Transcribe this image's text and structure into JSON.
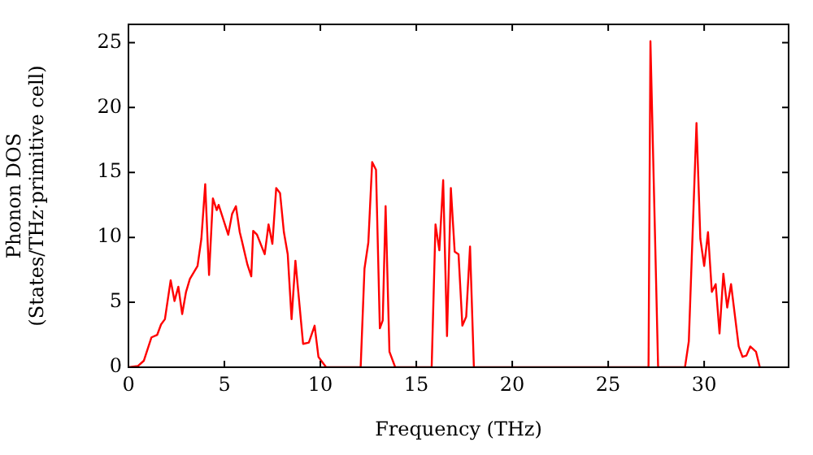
{
  "chart_data": {
    "type": "line",
    "xlabel": "Frequency (THz)",
    "ylabel": [
      "Phonon DOS",
      "(States/THz·primitive cell)"
    ],
    "xlim": [
      0,
      34.4
    ],
    "ylim": [
      0,
      26.4
    ],
    "xticks": [
      0,
      5,
      10,
      15,
      20,
      25,
      30
    ],
    "yticks": [
      0,
      5,
      10,
      15,
      20,
      25
    ],
    "grid": false,
    "legend": false,
    "marker": "none",
    "line_style": "solid",
    "series": [
      {
        "color": "#ff0000",
        "x": [
          0,
          0.5,
          0.8,
          1.2,
          1.5,
          1.7,
          1.9,
          2.2,
          2.4,
          2.6,
          2.8,
          3.0,
          3.2,
          3.6,
          3.8,
          4.0,
          4.2,
          4.4,
          4.6,
          4.7,
          5.2,
          5.4,
          5.6,
          5.8,
          5.9,
          6.2,
          6.4,
          6.5,
          6.7,
          7.1,
          7.3,
          7.5,
          7.7,
          7.9,
          8.1,
          8.3,
          8.5,
          8.7,
          9.1,
          9.4,
          9.7,
          9.9,
          10.3,
          12.1,
          12.3,
          12.5,
          12.7,
          12.9,
          13.1,
          13.25,
          13.4,
          13.6,
          13.9,
          15.8,
          16.0,
          16.2,
          16.4,
          16.6,
          16.8,
          17.0,
          17.2,
          17.4,
          17.6,
          17.8,
          18.0,
          27.1,
          27.2,
          27.6,
          29.0,
          29.2,
          29.6,
          29.8,
          30.0,
          30.2,
          30.4,
          30.6,
          30.8,
          31.0,
          31.2,
          31.4,
          31.8,
          32.0,
          32.2,
          32.4,
          32.7,
          32.9
        ],
        "values": [
          0,
          0.1,
          0.5,
          2.3,
          2.5,
          3.3,
          3.7,
          6.7,
          5.1,
          6.2,
          4.1,
          5.8,
          6.8,
          7.8,
          9.9,
          14.1,
          7.1,
          13.0,
          12.1,
          12.5,
          10.2,
          11.8,
          12.4,
          10.4,
          9.8,
          7.9,
          7.0,
          10.5,
          10.2,
          8.7,
          11.0,
          9.5,
          13.8,
          13.4,
          10.4,
          8.7,
          3.7,
          8.2,
          1.8,
          1.9,
          3.2,
          0.8,
          0,
          0,
          7.6,
          9.6,
          15.8,
          15.2,
          3.0,
          3.6,
          12.4,
          1.2,
          0,
          0,
          11.0,
          9.0,
          14.4,
          2.4,
          13.8,
          8.9,
          8.7,
          3.2,
          3.9,
          9.3,
          0,
          0,
          25.1,
          0,
          0,
          2.0,
          18.8,
          9.9,
          7.8,
          10.4,
          5.8,
          6.4,
          2.6,
          7.2,
          4.6,
          6.4,
          1.6,
          0.8,
          0.9,
          1.6,
          1.2,
          0
        ]
      }
    ]
  }
}
